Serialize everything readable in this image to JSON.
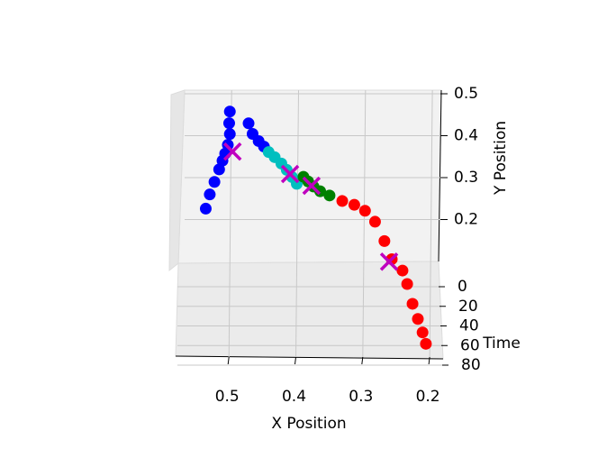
{
  "chart_data": {
    "type": "scatter3d",
    "xlabel": "X Position",
    "ylabel": "Y Position",
    "zlabel": "Time",
    "xlim": [
      0.577,
      0.184
    ],
    "ylim": [
      0.1,
      0.5
    ],
    "zlim": [
      0,
      80
    ],
    "xticks": [
      0.5,
      0.4,
      0.3,
      0.2
    ],
    "yticks": [
      0.2,
      0.3,
      0.4,
      0.5
    ],
    "zticks": [
      0,
      20,
      40,
      60,
      80
    ],
    "grid": true,
    "series": [
      {
        "color": "#0000ff",
        "marker": "o",
        "x": [
          0.536,
          0.53,
          0.523,
          0.516,
          0.511,
          0.507,
          0.503,
          0.5,
          0.501,
          0.5,
          0.472,
          0.466,
          0.457,
          0.449
        ],
        "y": [
          0.226,
          0.262,
          0.294,
          0.326,
          0.349,
          0.368,
          0.391,
          0.419,
          0.447,
          0.477,
          0.451,
          0.428,
          0.413,
          0.402
        ],
        "z": [
          0,
          2,
          4,
          6,
          8,
          10,
          12,
          14,
          16,
          18,
          20,
          22,
          24,
          26
        ]
      },
      {
        "color": "#00bfbf",
        "marker": "o",
        "x": [
          0.442,
          0.433,
          0.423,
          0.415,
          0.407,
          0.4
        ],
        "y": [
          0.391,
          0.381,
          0.368,
          0.355,
          0.34,
          0.326
        ],
        "z": [
          28,
          30,
          32,
          34,
          36,
          38
        ]
      },
      {
        "color": "#008000",
        "marker": "o",
        "x": [
          0.39,
          0.383,
          0.375,
          0.365,
          0.351
        ],
        "y": [
          0.345,
          0.336,
          0.326,
          0.317,
          0.309
        ],
        "z": [
          40,
          42,
          44,
          46,
          48
        ]
      },
      {
        "color": "#ff0000",
        "marker": "o",
        "x": [
          0.332,
          0.314,
          0.298,
          0.283,
          0.269,
          0.258,
          0.242,
          0.235,
          0.227,
          0.219,
          0.212,
          0.207
        ],
        "y": [
          0.298,
          0.291,
          0.279,
          0.255,
          0.211,
          0.17,
          0.145,
          0.115,
          0.07,
          0.036,
          0.006,
          -0.019
        ],
        "z": [
          50,
          52,
          54,
          56,
          58,
          60,
          62,
          64,
          66,
          68,
          70,
          72
        ]
      },
      {
        "color": "#bf00bf",
        "marker": "x",
        "x": [
          0.496,
          0.41,
          0.378,
          0.262
        ],
        "y": [
          0.376,
          0.344,
          0.328,
          0.165
        ],
        "z": [
          13,
          33,
          44,
          61
        ]
      }
    ]
  }
}
